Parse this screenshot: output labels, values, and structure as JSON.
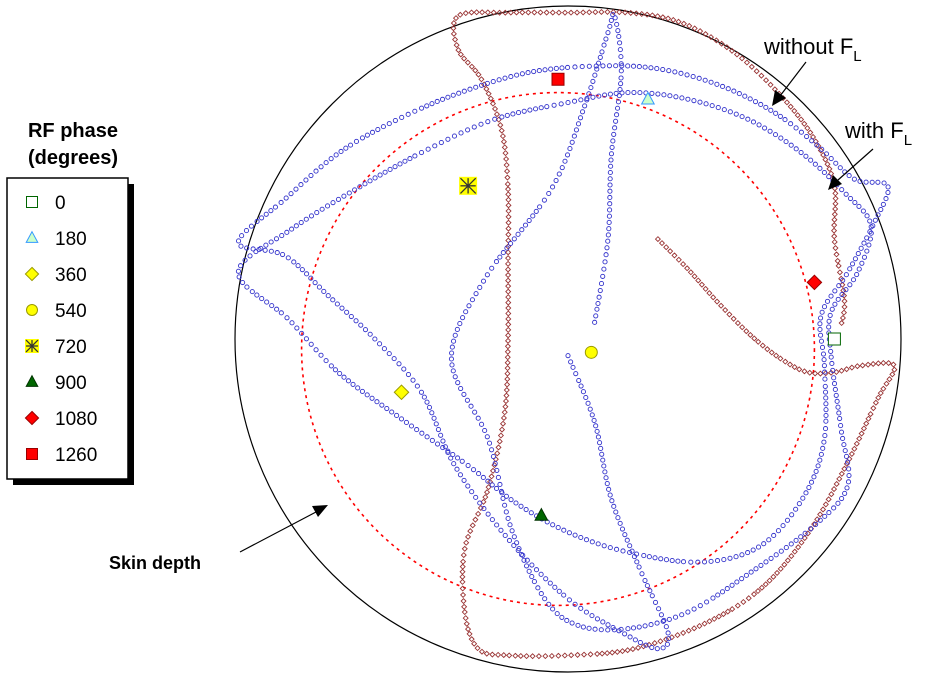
{
  "chart_data": {
    "type": "scatter",
    "title": "",
    "xlabel": "",
    "ylabel": "",
    "grid": false,
    "axes_visible": false,
    "coordinate_system": "normalized, electrode radius = 1",
    "legend": {
      "title_line1": "RF phase",
      "title_line2": "(degrees)",
      "placement": "left",
      "entries": [
        {
          "label": "0",
          "marker": "square",
          "fill": "#ffffff",
          "stroke": "#006600"
        },
        {
          "label": "180",
          "marker": "triangle",
          "fill": "#ccffcc",
          "stroke": "#3399ff"
        },
        {
          "label": "360",
          "marker": "diamond",
          "fill": "#ffff00",
          "stroke": "#999900"
        },
        {
          "label": "540",
          "marker": "circle",
          "fill": "#ffff00",
          "stroke": "#999900"
        },
        {
          "label": "720",
          "marker": "asterisk",
          "fill": "#ffff00",
          "stroke": "#333333"
        },
        {
          "label": "900",
          "marker": "triangle",
          "fill": "#006600",
          "stroke": "#003300"
        },
        {
          "label": "1080",
          "marker": "diamond",
          "fill": "#ff0000",
          "stroke": "#990000"
        },
        {
          "label": "1260",
          "marker": "square",
          "fill": "#ff0000",
          "stroke": "#990000"
        }
      ]
    },
    "annotations": {
      "without_prefix": "without F",
      "with_prefix": "with F",
      "subscript": "L",
      "skin_depth": "Skin depth"
    },
    "boundary_circle": {
      "cx": 0,
      "cy": 0,
      "r": 1.0,
      "color": "#000000"
    },
    "skin_depth_circle": {
      "cx": -0.03,
      "cy": -0.03,
      "r": 0.77,
      "color": "#ff0000"
    },
    "series": [
      {
        "name": "without F_L",
        "color": "#993333",
        "marker": "diamond",
        "points": [
          [
            0.27,
            0.3
          ],
          [
            0.36,
            0.21
          ],
          [
            0.45,
            0.11
          ],
          [
            0.55,
            0.01
          ],
          [
            0.64,
            -0.06
          ],
          [
            0.72,
            -0.1
          ],
          [
            0.8,
            -0.1
          ],
          [
            0.88,
            -0.08
          ],
          [
            0.98,
            -0.08
          ],
          [
            0.93,
            -0.18
          ],
          [
            0.84,
            -0.37
          ],
          [
            0.73,
            -0.57
          ],
          [
            0.59,
            -0.74
          ],
          [
            0.42,
            -0.85
          ],
          [
            0.2,
            -0.93
          ],
          [
            0.0,
            -0.95
          ],
          [
            -0.18,
            -0.95
          ],
          [
            -0.27,
            -0.93
          ],
          [
            -0.31,
            -0.82
          ],
          [
            -0.31,
            -0.63
          ],
          [
            -0.24,
            -0.45
          ],
          [
            -0.19,
            -0.22
          ],
          [
            -0.18,
            0.0
          ],
          [
            -0.18,
            0.22
          ],
          [
            -0.18,
            0.45
          ],
          [
            -0.2,
            0.63
          ],
          [
            -0.26,
            0.78
          ],
          [
            -0.33,
            0.87
          ],
          [
            -0.33,
            0.97
          ],
          [
            -0.18,
            0.98
          ],
          [
            0.0,
            0.98
          ],
          [
            0.18,
            0.98
          ],
          [
            0.34,
            0.95
          ],
          [
            0.5,
            0.86
          ],
          [
            0.64,
            0.73
          ],
          [
            0.74,
            0.6
          ],
          [
            0.8,
            0.46
          ],
          [
            0.8,
            0.3
          ],
          [
            0.83,
            0.12
          ],
          [
            0.82,
            0.04
          ]
        ]
      },
      {
        "name": "with F_L",
        "color": "#3333cc",
        "marker": "circle",
        "points": [
          [
            0.0,
            -0.05
          ],
          [
            0.08,
            -0.25
          ],
          [
            0.13,
            -0.48
          ],
          [
            0.22,
            -0.7
          ],
          [
            0.3,
            -0.88
          ],
          [
            0.27,
            -0.93
          ],
          [
            0.16,
            -0.88
          ],
          [
            0.0,
            -0.78
          ],
          [
            -0.18,
            -0.6
          ],
          [
            -0.34,
            -0.38
          ],
          [
            -0.44,
            -0.16
          ],
          [
            -0.58,
            0.0
          ],
          [
            -0.72,
            0.13
          ],
          [
            -0.85,
            0.25
          ],
          [
            -0.99,
            0.29
          ],
          [
            -0.85,
            0.42
          ],
          [
            -0.7,
            0.55
          ],
          [
            -0.55,
            0.64
          ],
          [
            -0.35,
            0.73
          ],
          [
            -0.12,
            0.8
          ],
          [
            0.1,
            0.82
          ],
          [
            0.28,
            0.81
          ],
          [
            0.46,
            0.76
          ],
          [
            0.62,
            0.68
          ],
          [
            0.75,
            0.58
          ],
          [
            0.86,
            0.48
          ],
          [
            0.96,
            0.46
          ],
          [
            0.92,
            0.35
          ],
          [
            0.84,
            0.2
          ],
          [
            0.76,
            0.07
          ],
          [
            0.77,
            -0.08
          ],
          [
            0.77,
            -0.3
          ],
          [
            0.71,
            -0.47
          ],
          [
            0.58,
            -0.62
          ],
          [
            0.4,
            -0.67
          ],
          [
            0.18,
            -0.64
          ],
          [
            0.0,
            -0.58
          ],
          [
            -0.16,
            -0.49
          ],
          [
            -0.3,
            -0.38
          ],
          [
            -0.5,
            -0.24
          ],
          [
            -0.69,
            -0.1
          ],
          [
            -0.84,
            0.06
          ],
          [
            -0.99,
            0.2
          ],
          [
            -0.83,
            0.33
          ],
          [
            -0.62,
            0.46
          ],
          [
            -0.42,
            0.57
          ],
          [
            -0.22,
            0.66
          ],
          [
            0.0,
            0.71
          ],
          [
            0.18,
            0.74
          ],
          [
            0.36,
            0.72
          ],
          [
            0.54,
            0.66
          ],
          [
            0.7,
            0.56
          ],
          [
            0.83,
            0.44
          ],
          [
            0.91,
            0.34
          ],
          [
            0.87,
            0.2
          ],
          [
            0.79,
            0.08
          ],
          [
            0.79,
            -0.05
          ],
          [
            0.82,
            -0.27
          ],
          [
            0.84,
            -0.44
          ],
          [
            0.74,
            -0.56
          ],
          [
            0.55,
            -0.7
          ],
          [
            0.36,
            -0.82
          ],
          [
            0.18,
            -0.87
          ],
          [
            0.03,
            -0.86
          ],
          [
            -0.07,
            -0.78
          ],
          [
            -0.17,
            -0.57
          ],
          [
            -0.24,
            -0.3
          ],
          [
            -0.35,
            -0.06
          ],
          [
            -0.25,
            0.18
          ],
          [
            -0.05,
            0.45
          ],
          [
            0.05,
            0.7
          ],
          [
            0.12,
            0.92
          ],
          [
            0.14,
            0.97
          ],
          [
            0.16,
            0.8
          ],
          [
            0.13,
            0.55
          ],
          [
            0.12,
            0.3
          ],
          [
            0.08,
            0.05
          ]
        ]
      }
    ],
    "phase_markers": [
      {
        "label": "0",
        "x": 0.8,
        "y": 0.0
      },
      {
        "label": "180",
        "x": 0.24,
        "y": 0.72
      },
      {
        "label": "360",
        "x": -0.5,
        "y": -0.16
      },
      {
        "label": "540",
        "x": 0.07,
        "y": -0.04
      },
      {
        "label": "720",
        "x": -0.3,
        "y": 0.46
      },
      {
        "label": "900",
        "x": -0.08,
        "y": -0.53
      },
      {
        "label": "1080",
        "x": 0.74,
        "y": 0.17
      },
      {
        "label": "1260",
        "x": -0.03,
        "y": 0.78
      }
    ]
  }
}
